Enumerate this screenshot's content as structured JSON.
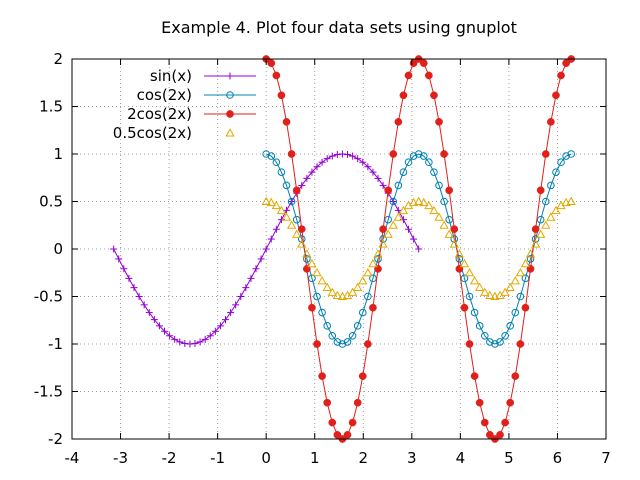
{
  "chart_data": {
    "type": "line",
    "title": "Example 4. Plot four data sets using gnuplot",
    "xlabel": "",
    "ylabel": "",
    "xlim": [
      -4,
      7
    ],
    "ylim": [
      -2,
      2
    ],
    "xticks": [
      -4,
      -3,
      -2,
      -1,
      0,
      1,
      2,
      3,
      4,
      5,
      6,
      7
    ],
    "yticks": [
      -2,
      -1.5,
      -1,
      -0.5,
      0,
      0.5,
      1,
      1.5,
      2
    ],
    "grid": true,
    "legend_position": "top-left",
    "series": [
      {
        "name": "sin(x)",
        "color": "#9400d3",
        "marker": "plus",
        "x": [
          -3.1416,
          -3.0369,
          -2.9322,
          -2.8274,
          -2.7227,
          -2.618,
          -2.5133,
          -2.4086,
          -2.3038,
          -2.1991,
          -2.0944,
          -1.9897,
          -1.885,
          -1.7802,
          -1.6755,
          -1.5708,
          -1.4661,
          -1.3614,
          -1.2566,
          -1.1519,
          -1.0472,
          -0.9425,
          -0.8378,
          -0.733,
          -0.6283,
          -0.5236,
          -0.4189,
          -0.3142,
          -0.2094,
          -0.1047,
          0,
          0.1047,
          0.2094,
          0.3142,
          0.4189,
          0.5236,
          0.6283,
          0.733,
          0.8378,
          0.9425,
          1.0472,
          1.1519,
          1.2566,
          1.3614,
          1.4661,
          1.5708,
          1.6755,
          1.7802,
          1.885,
          1.9897,
          2.0944,
          2.1991,
          2.3038,
          2.4086,
          2.5133,
          2.618,
          2.7227,
          2.8274,
          2.9322,
          3.0369,
          3.1416
        ],
        "y": [
          0,
          -0.1045,
          -0.2079,
          -0.309,
          -0.4067,
          -0.5,
          -0.5878,
          -0.6691,
          -0.7431,
          -0.809,
          -0.866,
          -0.9135,
          -0.9511,
          -0.9781,
          -0.9945,
          -1,
          -0.9945,
          -0.9781,
          -0.9511,
          -0.9135,
          -0.866,
          -0.809,
          -0.7431,
          -0.6691,
          -0.5878,
          -0.5,
          -0.4067,
          -0.309,
          -0.2079,
          -0.1045,
          0,
          0.1045,
          0.2079,
          0.309,
          0.4067,
          0.5,
          0.5878,
          0.6691,
          0.7431,
          0.809,
          0.866,
          0.9135,
          0.9511,
          0.9781,
          0.9945,
          1,
          0.9945,
          0.9781,
          0.9511,
          0.9135,
          0.866,
          0.809,
          0.7431,
          0.6691,
          0.5878,
          0.5,
          0.4067,
          0.309,
          0.2079,
          0.1045,
          0
        ]
      },
      {
        "name": "cos(2x)",
        "color": "#0080b0",
        "marker": "open-circle",
        "x": [
          0,
          0.1047,
          0.2094,
          0.3142,
          0.4189,
          0.5236,
          0.6283,
          0.733,
          0.8378,
          0.9425,
          1.0472,
          1.1519,
          1.2566,
          1.3614,
          1.4661,
          1.5708,
          1.6755,
          1.7802,
          1.885,
          1.9897,
          2.0944,
          2.1991,
          2.3038,
          2.4086,
          2.5133,
          2.618,
          2.7227,
          2.8274,
          2.9322,
          3.0369,
          3.1416,
          3.2463,
          3.351,
          3.4558,
          3.5605,
          3.6652,
          3.7699,
          3.8746,
          3.9794,
          4.0841,
          4.1888,
          4.2935,
          4.3982,
          4.5029,
          4.6077,
          4.7124,
          4.8171,
          4.9218,
          5.0265,
          5.1313,
          5.236,
          5.3407,
          5.4454,
          5.5501,
          5.6549,
          5.7596,
          5.8643,
          5.969,
          6.0737,
          6.1785,
          6.2832
        ],
        "y": [
          1,
          0.9781,
          0.9135,
          0.809,
          0.6691,
          0.5,
          0.309,
          0.1045,
          -0.1045,
          -0.309,
          -0.5,
          -0.6691,
          -0.809,
          -0.9135,
          -0.9781,
          -1,
          -0.9781,
          -0.9135,
          -0.809,
          -0.6691,
          -0.5,
          -0.309,
          -0.1045,
          0.1045,
          0.309,
          0.5,
          0.6691,
          0.809,
          0.9135,
          0.9781,
          1,
          0.9781,
          0.9135,
          0.809,
          0.6691,
          0.5,
          0.309,
          0.1045,
          -0.1045,
          -0.309,
          -0.5,
          -0.6691,
          -0.809,
          -0.9135,
          -0.9781,
          -1,
          -0.9781,
          -0.9135,
          -0.809,
          -0.6691,
          -0.5,
          -0.309,
          -0.1045,
          0.1045,
          0.309,
          0.5,
          0.6691,
          0.809,
          0.9135,
          0.9781,
          1
        ]
      },
      {
        "name": "2cos(2x)",
        "color": "#e0201b",
        "marker": "filled-circle",
        "x": [
          0,
          0.1047,
          0.2094,
          0.3142,
          0.4189,
          0.5236,
          0.6283,
          0.733,
          0.8378,
          0.9425,
          1.0472,
          1.1519,
          1.2566,
          1.3614,
          1.4661,
          1.5708,
          1.6755,
          1.7802,
          1.885,
          1.9897,
          2.0944,
          2.1991,
          2.3038,
          2.4086,
          2.5133,
          2.618,
          2.7227,
          2.8274,
          2.9322,
          3.0369,
          3.1416,
          3.2463,
          3.351,
          3.4558,
          3.5605,
          3.6652,
          3.7699,
          3.8746,
          3.9794,
          4.0841,
          4.1888,
          4.2935,
          4.3982,
          4.5029,
          4.6077,
          4.7124,
          4.8171,
          4.9218,
          5.0265,
          5.1313,
          5.236,
          5.3407,
          5.4454,
          5.5501,
          5.6549,
          5.7596,
          5.8643,
          5.969,
          6.0737,
          6.1785,
          6.2832
        ],
        "y": [
          2,
          1.9563,
          1.827,
          1.618,
          1.3383,
          1,
          0.618,
          0.2091,
          -0.2091,
          -0.618,
          -1,
          -1.3383,
          -1.618,
          -1.827,
          -1.9563,
          -2,
          -1.9563,
          -1.827,
          -1.618,
          -1.3383,
          -1,
          -0.618,
          -0.2091,
          0.2091,
          0.618,
          1,
          1.3383,
          1.618,
          1.827,
          1.9563,
          2,
          1.9563,
          1.827,
          1.618,
          1.3383,
          1,
          0.618,
          0.2091,
          -0.2091,
          -0.618,
          -1,
          -1.3383,
          -1.618,
          -1.827,
          -1.9563,
          -2,
          -1.9563,
          -1.827,
          -1.618,
          -1.3383,
          -1,
          -0.618,
          -0.2091,
          0.2091,
          0.618,
          1,
          1.3383,
          1.618,
          1.827,
          1.9563,
          2
        ]
      },
      {
        "name": "0.5cos(2x)",
        "color": "#e6a800",
        "marker": "open-triangle",
        "line": false,
        "x": [
          0,
          0.1047,
          0.2094,
          0.3142,
          0.4189,
          0.5236,
          0.6283,
          0.733,
          0.8378,
          0.9425,
          1.0472,
          1.1519,
          1.2566,
          1.3614,
          1.4661,
          1.5708,
          1.6755,
          1.7802,
          1.885,
          1.9897,
          2.0944,
          2.1991,
          2.3038,
          2.4086,
          2.5133,
          2.618,
          2.7227,
          2.8274,
          2.9322,
          3.0369,
          3.1416,
          3.2463,
          3.351,
          3.4558,
          3.5605,
          3.6652,
          3.7699,
          3.8746,
          3.9794,
          4.0841,
          4.1888,
          4.2935,
          4.3982,
          4.5029,
          4.6077,
          4.7124,
          4.8171,
          4.9218,
          5.0265,
          5.1313,
          5.236,
          5.3407,
          5.4454,
          5.5501,
          5.6549,
          5.7596,
          5.8643,
          5.969,
          6.0737,
          6.1785,
          6.2832
        ],
        "y": [
          0.5,
          0.4891,
          0.4568,
          0.4045,
          0.3346,
          0.25,
          0.1545,
          0.0523,
          -0.0523,
          -0.1545,
          -0.25,
          -0.3346,
          -0.4045,
          -0.4568,
          -0.4891,
          -0.5,
          -0.4891,
          -0.4568,
          -0.4045,
          -0.3346,
          -0.25,
          -0.1545,
          -0.0523,
          0.0523,
          0.1545,
          0.25,
          0.3346,
          0.4045,
          0.4568,
          0.4891,
          0.5,
          0.4891,
          0.4568,
          0.4045,
          0.3346,
          0.25,
          0.1545,
          0.0523,
          -0.0523,
          -0.1545,
          -0.25,
          -0.3346,
          -0.4045,
          -0.4568,
          -0.4891,
          -0.5,
          -0.4891,
          -0.4568,
          -0.4045,
          -0.3346,
          -0.25,
          -0.1545,
          -0.0523,
          0.0523,
          0.1545,
          0.25,
          0.3346,
          0.4045,
          0.4568,
          0.4891,
          0.5
        ]
      }
    ]
  }
}
